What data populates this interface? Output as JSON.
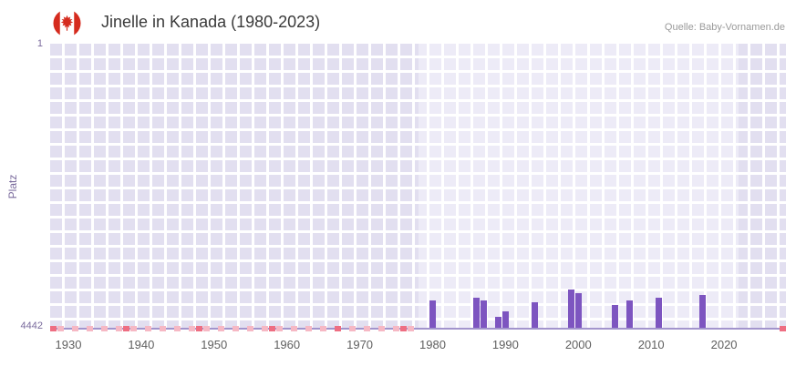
{
  "header": {
    "title": "Jinelle in Kanada (1980-2023)",
    "source": "Quelle: Baby-Vornamen.de"
  },
  "chart_data": {
    "type": "bar",
    "title": "Jinelle in Kanada (1980-2023)",
    "ylabel": "Platz",
    "y_axis": {
      "top_label": "1",
      "bottom_label": "4442",
      "min": 1,
      "max": 4442,
      "inverted": true
    },
    "x_axis": {
      "tick_years": [
        1930,
        1940,
        1950,
        1960,
        1970,
        1980,
        1990,
        2000,
        2010,
        2020
      ],
      "min_year": 1927.5,
      "max_year": 2028.5
    },
    "data_period": {
      "start": 1978,
      "end": 2022
    },
    "bars": [
      {
        "year": 1980,
        "rank": 4020
      },
      {
        "year": 1986,
        "rank": 3975
      },
      {
        "year": 1987,
        "rank": 4020
      },
      {
        "year": 1989,
        "rank": 4270
      },
      {
        "year": 1990,
        "rank": 4190
      },
      {
        "year": 1994,
        "rank": 4045
      },
      {
        "year": 1999,
        "rank": 3850
      },
      {
        "year": 2000,
        "rank": 3905
      },
      {
        "year": 2005,
        "rank": 4090
      },
      {
        "year": 2007,
        "rank": 4020
      },
      {
        "year": 2011,
        "rank": 3975
      },
      {
        "year": 2017,
        "rank": 3935
      }
    ],
    "unranked_marks": {
      "pale_years": [
        1929,
        1931,
        1933,
        1935,
        1937,
        1939,
        1941,
        1943,
        1945,
        1947,
        1949,
        1951,
        1953,
        1955,
        1957,
        1959,
        1961,
        1963,
        1965,
        1969,
        1971,
        1973,
        1975,
        1977
      ],
      "strong_years": [
        1928,
        1938,
        1948,
        1958,
        1967,
        1976,
        2028
      ]
    },
    "colors": {
      "bar": "#7d55c0",
      "pale_mark": "#f6b8c4",
      "strong_mark": "#ee6e82",
      "plot_bg": "#e2dff0",
      "active_band_bg": "#edebf7",
      "grid_line": "#ffffff",
      "baseline": "#a294cc",
      "axis_label": "#7a6b9d",
      "tick_label": "#5f5f5f"
    }
  }
}
